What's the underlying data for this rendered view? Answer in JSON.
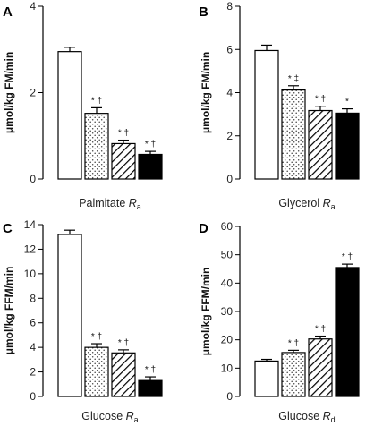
{
  "chart_data": [
    {
      "type": "bar",
      "panel": "A",
      "ylabel": "μmol/kg FM/min",
      "xlabel_main": "Palmitate ",
      "xlabel_italic": "R",
      "xlabel_sub": "a",
      "ylim": [
        0,
        4
      ],
      "yticks": [
        0,
        2,
        4
      ],
      "values": [
        2.95,
        1.52,
        0.82,
        0.57
      ],
      "errors": [
        0.1,
        0.13,
        0.08,
        0.07
      ],
      "annotations": [
        "",
        "* †",
        "* †",
        "* †"
      ]
    },
    {
      "type": "bar",
      "panel": "B",
      "ylabel": "μmol/kg FM/min",
      "xlabel_main": "Glycerol ",
      "xlabel_italic": "R",
      "xlabel_sub": "a",
      "ylim": [
        0,
        8
      ],
      "yticks": [
        0,
        2,
        4,
        6,
        8
      ],
      "values": [
        5.95,
        4.12,
        3.17,
        3.05
      ],
      "errors": [
        0.25,
        0.2,
        0.2,
        0.2
      ],
      "annotations": [
        "",
        "* ‡",
        "* †",
        "*"
      ]
    },
    {
      "type": "bar",
      "panel": "C",
      "ylabel": "μmol/kg FFM/min",
      "xlabel_main": "Glucose ",
      "xlabel_italic": "R",
      "xlabel_sub": "a",
      "ylim": [
        0,
        14
      ],
      "yticks": [
        0,
        2,
        4,
        6,
        8,
        10,
        12,
        14
      ],
      "values": [
        13.2,
        4.0,
        3.55,
        1.3
      ],
      "errors": [
        0.35,
        0.3,
        0.25,
        0.3
      ],
      "annotations": [
        "",
        "* †",
        "* †",
        "* †"
      ]
    },
    {
      "type": "bar",
      "panel": "D",
      "ylabel": "μmol/kg FFM/min",
      "xlabel_main": "Glucose ",
      "xlabel_italic": "R",
      "xlabel_sub": "d",
      "ylim": [
        0,
        60
      ],
      "yticks": [
        0,
        10,
        20,
        30,
        40,
        50,
        60
      ],
      "values": [
        12.5,
        15.5,
        20.3,
        45.5
      ],
      "errors": [
        0.6,
        0.8,
        1.0,
        1.2
      ],
      "annotations": [
        "",
        "* †",
        "* †",
        "* †"
      ]
    }
  ],
  "bar_fills": [
    "white",
    "dotted",
    "hatched",
    "black"
  ]
}
